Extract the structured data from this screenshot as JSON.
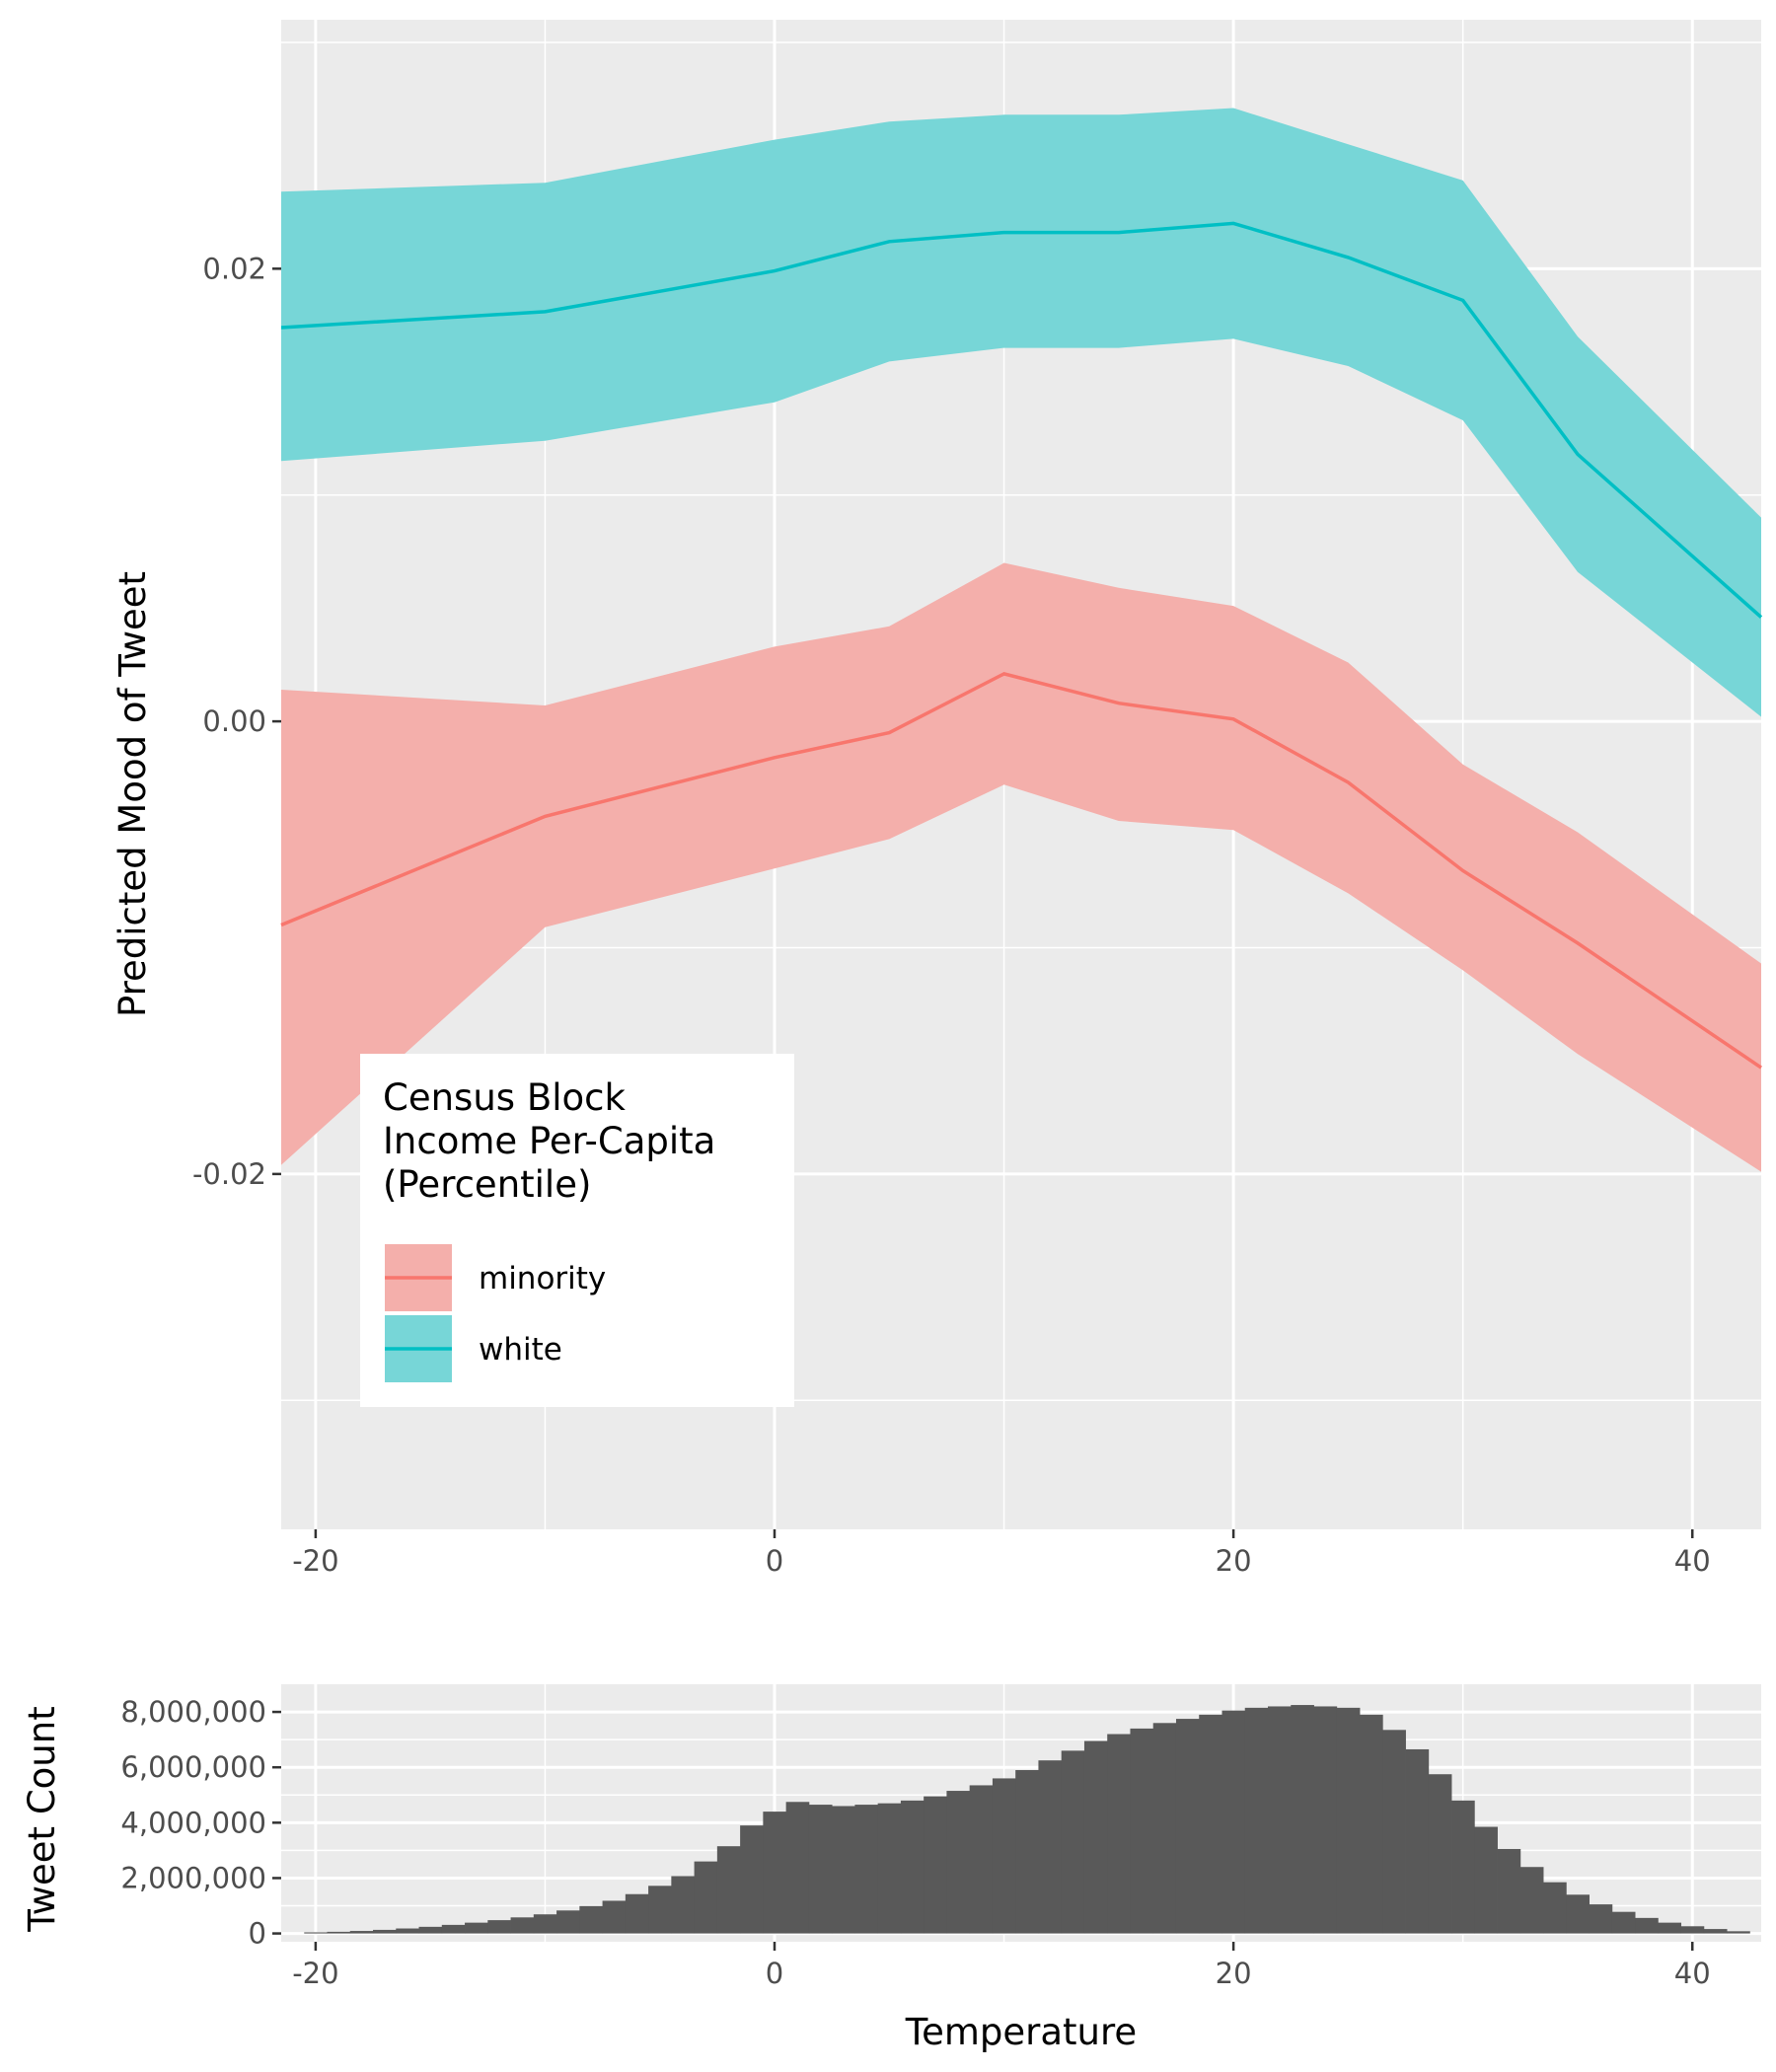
{
  "chart_data": [
    {
      "type": "line",
      "ylabel": "Predicted Mood of Tweet",
      "xlabel": "",
      "xlim": [
        -21.5,
        43
      ],
      "ylim": [
        -0.0357,
        0.031
      ],
      "x_ticks": [
        -20,
        0,
        20,
        40
      ],
      "x_tick_labels": [
        "-20",
        "0",
        "20",
        "40"
      ],
      "y_ticks": [
        -0.02,
        0.0,
        0.02
      ],
      "y_tick_labels": [
        "-0.02",
        "0.00",
        "0.02"
      ],
      "grid": true,
      "legend": {
        "title": [
          "Census Block",
          "Income Per-Capita",
          "(Percentile)"
        ],
        "placement": "bottom-left",
        "entries": [
          "minority",
          "white"
        ]
      },
      "series": [
        {
          "name": "minority",
          "line_color": "#F8766D",
          "band_color": "#F4AFAB",
          "x": [
            -21.5,
            -10,
            0,
            5,
            10,
            15,
            20,
            25,
            30,
            35,
            43
          ],
          "y": [
            -0.009,
            -0.0042,
            -0.0016,
            -0.0005,
            0.0021,
            0.0008,
            0.0001,
            -0.0027,
            -0.0066,
            -0.0098,
            -0.0153
          ],
          "lower": [
            -0.0196,
            -0.0091,
            -0.0065,
            -0.0052,
            -0.0028,
            -0.0044,
            -0.0048,
            -0.0076,
            -0.011,
            -0.0147,
            -0.0199
          ],
          "upper": [
            0.0014,
            0.0007,
            0.0033,
            0.0042,
            0.007,
            0.0059,
            0.0051,
            0.0026,
            -0.0019,
            -0.0049,
            -0.0107
          ]
        },
        {
          "name": "white",
          "line_color": "#00BFC4",
          "band_color": "#77D6D7",
          "x": [
            -21.5,
            -10,
            0,
            5,
            10,
            15,
            20,
            25,
            30,
            35,
            43
          ],
          "y": [
            0.0174,
            0.0181,
            0.0199,
            0.0212,
            0.0216,
            0.0216,
            0.022,
            0.0205,
            0.0186,
            0.0118,
            0.0046
          ],
          "lower": [
            0.0115,
            0.0124,
            0.0141,
            0.0159,
            0.0165,
            0.0165,
            0.0169,
            0.0157,
            0.0133,
            0.0066,
            0.0002
          ],
          "upper": [
            0.0234,
            0.0238,
            0.0257,
            0.0265,
            0.0268,
            0.0268,
            0.0271,
            0.0255,
            0.0239,
            0.017,
            0.009
          ]
        }
      ]
    },
    {
      "type": "bar",
      "ylabel": "Tweet Count",
      "xlabel": "Temperature",
      "xlim": [
        -21.5,
        43
      ],
      "ylim": [
        -300000,
        9000000
      ],
      "x_ticks": [
        -20,
        0,
        20,
        40
      ],
      "x_tick_labels": [
        "-20",
        "0",
        "20",
        "40"
      ],
      "y_ticks": [
        0,
        2000000,
        4000000,
        6000000,
        8000000
      ],
      "y_tick_labels": [
        "0",
        "2,000,000",
        "4,000,000",
        "6,000,000",
        "8,000,000"
      ],
      "grid": true,
      "bar_color": "#595959",
      "bin_width": 1,
      "bin_centers": [
        -20,
        -19,
        -18,
        -17,
        -16,
        -15,
        -14,
        -13,
        -12,
        -11,
        -10,
        -9,
        -8,
        -7,
        -6,
        -5,
        -4,
        -3,
        -2,
        -1,
        0,
        1,
        2,
        3,
        4,
        5,
        6,
        7,
        8,
        9,
        10,
        11,
        12,
        13,
        14,
        15,
        16,
        17,
        18,
        19,
        20,
        21,
        22,
        23,
        24,
        25,
        26,
        27,
        28,
        29,
        30,
        31,
        32,
        33,
        34,
        35,
        36,
        37,
        38,
        39,
        40,
        41,
        42
      ],
      "values": [
        40000,
        60000,
        90000,
        130000,
        180000,
        240000,
        310000,
        390000,
        480000,
        580000,
        690000,
        830000,
        990000,
        1180000,
        1420000,
        1720000,
        2070000,
        2600000,
        3150000,
        3900000,
        4400000,
        4750000,
        4650000,
        4600000,
        4650000,
        4700000,
        4800000,
        4950000,
        5150000,
        5350000,
        5600000,
        5900000,
        6250000,
        6600000,
        6950000,
        7200000,
        7400000,
        7600000,
        7750000,
        7900000,
        8050000,
        8150000,
        8200000,
        8250000,
        8200000,
        8150000,
        7900000,
        7350000,
        6650000,
        5750000,
        4800000,
        3850000,
        3050000,
        2400000,
        1850000,
        1400000,
        1050000,
        780000,
        560000,
        390000,
        260000,
        160000,
        80000
      ]
    }
  ]
}
